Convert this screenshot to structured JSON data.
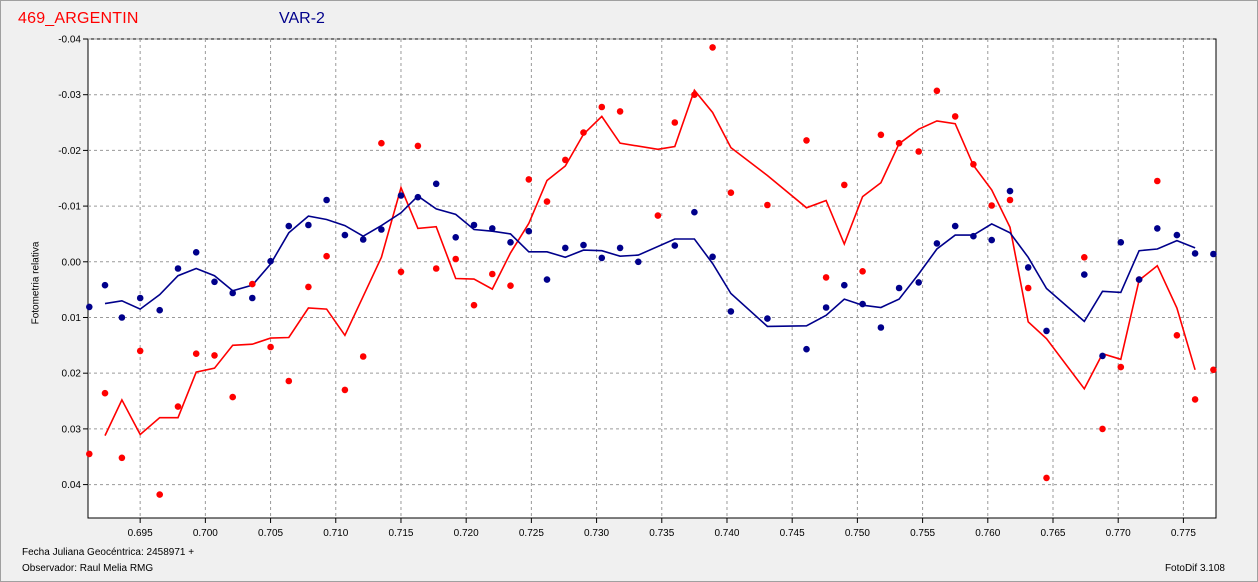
{
  "header": {
    "title_left": "469_ARGENTIN",
    "title_right": "VAR-2"
  },
  "footer": {
    "line1": "Fecha Juliana Geocéntrica: 2458971 +",
    "line2": "Observador: Raul Melia RMG",
    "version": "FotoDif 3.108"
  },
  "chart_data": {
    "type": "scatter",
    "ylabel": "Fotometria relativa",
    "xlabel": "Fecha Juliana Geocéntrica: 2458971 +",
    "xlim": [
      0.691,
      0.7775
    ],
    "ylim": [
      0.046,
      -0.04
    ],
    "y_inverted": true,
    "grid": true,
    "x_ticks": [
      "0.695",
      "0.700",
      "0.705",
      "0.710",
      "0.715",
      "0.720",
      "0.725",
      "0.730",
      "0.735",
      "0.740",
      "0.745",
      "0.750",
      "0.755",
      "0.760",
      "0.765",
      "0.770",
      "0.775"
    ],
    "y_ticks": [
      "-0.04",
      "-0.03",
      "-0.02",
      "-0.01",
      "0.00",
      "0.01",
      "0.02",
      "0.03",
      "0.04"
    ],
    "colors": {
      "red": "#ff0000",
      "blue": "#00008b"
    },
    "series": [
      {
        "color": "#ff0000",
        "points": [
          [
            0.6911,
            0.0345
          ],
          [
            0.6923,
            0.0236
          ],
          [
            0.6936,
            0.0352
          ],
          [
            0.695,
            0.016
          ],
          [
            0.6965,
            0.0418
          ],
          [
            0.6979,
            0.026
          ],
          [
            0.6993,
            0.0165
          ],
          [
            0.7007,
            0.0168
          ],
          [
            0.7021,
            0.0243
          ],
          [
            0.7036,
            0.004
          ],
          [
            0.705,
            0.0153
          ],
          [
            0.7064,
            0.0214
          ],
          [
            0.7079,
            0.0045
          ],
          [
            0.7093,
            -0.001
          ],
          [
            0.7107,
            0.023
          ],
          [
            0.7121,
            0.017
          ],
          [
            0.7135,
            -0.0213
          ],
          [
            0.715,
            0.0018
          ],
          [
            0.7163,
            -0.0208
          ],
          [
            0.7177,
            0.0012
          ],
          [
            0.7192,
            -0.0005
          ],
          [
            0.7206,
            0.0078
          ],
          [
            0.722,
            0.0022
          ],
          [
            0.7234,
            0.0043
          ],
          [
            0.7248,
            -0.0148
          ],
          [
            0.7262,
            -0.0108
          ],
          [
            0.7276,
            -0.0183
          ],
          [
            0.729,
            -0.0232
          ],
          [
            0.7304,
            -0.0278
          ],
          [
            0.7318,
            -0.027
          ],
          [
            0.7347,
            -0.0083
          ],
          [
            0.736,
            -0.025
          ],
          [
            0.7375,
            -0.03
          ],
          [
            0.7389,
            -0.0385
          ],
          [
            0.7403,
            -0.0124
          ],
          [
            0.7431,
            -0.0102
          ],
          [
            0.7461,
            -0.0218
          ],
          [
            0.7476,
            0.0028
          ],
          [
            0.749,
            -0.0138
          ],
          [
            0.7504,
            0.0017
          ],
          [
            0.7518,
            -0.0228
          ],
          [
            0.7532,
            -0.0213
          ],
          [
            0.7547,
            -0.0198
          ],
          [
            0.7561,
            -0.0307
          ],
          [
            0.7575,
            -0.0261
          ],
          [
            0.7589,
            -0.0175
          ],
          [
            0.7603,
            -0.0101
          ],
          [
            0.7617,
            -0.0111
          ],
          [
            0.7631,
            0.0047
          ],
          [
            0.7645,
            0.0388
          ],
          [
            0.7674,
            -0.0008
          ],
          [
            0.7688,
            0.03
          ],
          [
            0.7702,
            0.0189
          ],
          [
            0.7716,
            0.0032
          ],
          [
            0.773,
            -0.0145
          ],
          [
            0.7745,
            0.0132
          ],
          [
            0.7759,
            0.0247
          ],
          [
            0.7773,
            0.0194
          ]
        ]
      },
      {
        "color": "#00008b",
        "points": [
          [
            0.6911,
            0.0081
          ],
          [
            0.6923,
            0.0042
          ],
          [
            0.6936,
            0.01
          ],
          [
            0.695,
            0.0065
          ],
          [
            0.6965,
            0.0087
          ],
          [
            0.6979,
            0.0012
          ],
          [
            0.6993,
            -0.0017
          ],
          [
            0.7007,
            0.0036
          ],
          [
            0.7021,
            0.0056
          ],
          [
            0.7036,
            0.0065
          ],
          [
            0.705,
            -0.0001
          ],
          [
            0.7064,
            -0.0064
          ],
          [
            0.7079,
            -0.0066
          ],
          [
            0.7093,
            -0.0111
          ],
          [
            0.7107,
            -0.0048
          ],
          [
            0.7121,
            -0.004
          ],
          [
            0.7135,
            -0.0058
          ],
          [
            0.715,
            -0.0119
          ],
          [
            0.7163,
            -0.0116
          ],
          [
            0.7177,
            -0.014
          ],
          [
            0.7192,
            -0.0044
          ],
          [
            0.7206,
            -0.0066
          ],
          [
            0.722,
            -0.006
          ],
          [
            0.7234,
            -0.0035
          ],
          [
            0.7248,
            -0.0055
          ],
          [
            0.7262,
            0.0032
          ],
          [
            0.7276,
            -0.0025
          ],
          [
            0.729,
            -0.003
          ],
          [
            0.7304,
            -0.0007
          ],
          [
            0.7318,
            -0.0025
          ],
          [
            0.7332,
            0.0
          ],
          [
            0.736,
            -0.0029
          ],
          [
            0.7375,
            -0.0089
          ],
          [
            0.7389,
            -0.0009
          ],
          [
            0.7403,
            0.0089
          ],
          [
            0.7431,
            0.0102
          ],
          [
            0.7461,
            0.0157
          ],
          [
            0.7476,
            0.0082
          ],
          [
            0.749,
            0.0042
          ],
          [
            0.7504,
            0.0076
          ],
          [
            0.7518,
            0.0118
          ],
          [
            0.7532,
            0.0047
          ],
          [
            0.7547,
            0.0037
          ],
          [
            0.7561,
            -0.0033
          ],
          [
            0.7575,
            -0.0064
          ],
          [
            0.7589,
            -0.0046
          ],
          [
            0.7603,
            -0.0039
          ],
          [
            0.7617,
            -0.0127
          ],
          [
            0.7631,
            0.001
          ],
          [
            0.7645,
            0.0124
          ],
          [
            0.7674,
            0.0023
          ],
          [
            0.7688,
            0.0169
          ],
          [
            0.7702,
            -0.0035
          ],
          [
            0.7716,
            0.0032
          ],
          [
            0.773,
            -0.006
          ],
          [
            0.7745,
            -0.0048
          ],
          [
            0.7759,
            -0.0015
          ],
          [
            0.7773,
            -0.0014
          ]
        ]
      },
      {
        "color": "#ff0000",
        "line": [
          [
            0.6923,
            0.0312
          ],
          [
            0.6936,
            0.0248
          ],
          [
            0.695,
            0.031
          ],
          [
            0.6965,
            0.028
          ],
          [
            0.6979,
            0.028
          ],
          [
            0.6993,
            0.0198
          ],
          [
            0.7007,
            0.0191
          ],
          [
            0.7021,
            0.015
          ],
          [
            0.7036,
            0.0148
          ],
          [
            0.705,
            0.0137
          ],
          [
            0.7064,
            0.0136
          ],
          [
            0.7079,
            0.0083
          ],
          [
            0.7093,
            0.0085
          ],
          [
            0.7107,
            0.0132
          ],
          [
            0.7121,
            0.0062
          ],
          [
            0.7135,
            -0.0008
          ],
          [
            0.715,
            -0.0133
          ],
          [
            0.7163,
            -0.006
          ],
          [
            0.7177,
            -0.0063
          ],
          [
            0.7192,
            0.003
          ],
          [
            0.7206,
            0.0031
          ],
          [
            0.722,
            0.0049
          ],
          [
            0.7234,
            -0.0016
          ],
          [
            0.7248,
            -0.0069
          ],
          [
            0.7262,
            -0.0146
          ],
          [
            0.7276,
            -0.0172
          ],
          [
            0.729,
            -0.0229
          ],
          [
            0.7304,
            -0.0261
          ],
          [
            0.7318,
            -0.0213
          ],
          [
            0.7347,
            -0.0202
          ],
          [
            0.736,
            -0.0207
          ],
          [
            0.7375,
            -0.0308
          ],
          [
            0.7389,
            -0.0268
          ],
          [
            0.7403,
            -0.0205
          ],
          [
            0.7431,
            -0.0155
          ],
          [
            0.7461,
            -0.0097
          ],
          [
            0.7476,
            -0.011
          ],
          [
            0.749,
            -0.0032
          ],
          [
            0.7504,
            -0.0117
          ],
          [
            0.7518,
            -0.0142
          ],
          [
            0.7532,
            -0.0212
          ],
          [
            0.7547,
            -0.0238
          ],
          [
            0.7561,
            -0.0253
          ],
          [
            0.7575,
            -0.0248
          ],
          [
            0.7589,
            -0.0173
          ],
          [
            0.7603,
            -0.0129
          ],
          [
            0.7617,
            -0.0062
          ],
          [
            0.7631,
            0.0108
          ],
          [
            0.7645,
            0.0138
          ],
          [
            0.7674,
            0.0228
          ],
          [
            0.7688,
            0.0165
          ],
          [
            0.7702,
            0.0175
          ],
          [
            0.7716,
            0.0033
          ],
          [
            0.773,
            0.0007
          ],
          [
            0.7745,
            0.0083
          ],
          [
            0.7759,
            0.0194
          ]
        ]
      },
      {
        "color": "#00008b",
        "line": [
          [
            0.6923,
            0.0075
          ],
          [
            0.6936,
            0.007
          ],
          [
            0.695,
            0.0085
          ],
          [
            0.6965,
            0.0059
          ],
          [
            0.6979,
            0.0025
          ],
          [
            0.6993,
            0.0012
          ],
          [
            0.7007,
            0.0025
          ],
          [
            0.7021,
            0.0052
          ],
          [
            0.7036,
            0.0042
          ],
          [
            0.705,
            0.0004
          ],
          [
            0.7064,
            -0.0052
          ],
          [
            0.7079,
            -0.0082
          ],
          [
            0.7093,
            -0.0076
          ],
          [
            0.7107,
            -0.0065
          ],
          [
            0.7121,
            -0.0046
          ],
          [
            0.7135,
            -0.0065
          ],
          [
            0.715,
            -0.0088
          ],
          [
            0.7163,
            -0.0118
          ],
          [
            0.7177,
            -0.0095
          ],
          [
            0.7192,
            -0.0085
          ],
          [
            0.7206,
            -0.0058
          ],
          [
            0.722,
            -0.0055
          ],
          [
            0.7234,
            -0.005
          ],
          [
            0.7248,
            -0.0018
          ],
          [
            0.7262,
            -0.0018
          ],
          [
            0.7276,
            -0.0008
          ],
          [
            0.729,
            -0.0021
          ],
          [
            0.7304,
            -0.002
          ],
          [
            0.7318,
            -0.001
          ],
          [
            0.7332,
            -0.0012
          ],
          [
            0.736,
            -0.0041
          ],
          [
            0.7375,
            -0.0041
          ],
          [
            0.7389,
            0.0003
          ],
          [
            0.7403,
            0.0057
          ],
          [
            0.7431,
            0.0116
          ],
          [
            0.7461,
            0.0115
          ],
          [
            0.7476,
            0.0096
          ],
          [
            0.749,
            0.0067
          ],
          [
            0.7504,
            0.0078
          ],
          [
            0.7518,
            0.0082
          ],
          [
            0.7532,
            0.0067
          ],
          [
            0.7547,
            0.0022
          ],
          [
            0.7561,
            -0.0023
          ],
          [
            0.7575,
            -0.0048
          ],
          [
            0.7589,
            -0.0048
          ],
          [
            0.7603,
            -0.0068
          ],
          [
            0.7617,
            -0.0052
          ],
          [
            0.7631,
            -0.0008
          ],
          [
            0.7645,
            0.0048
          ],
          [
            0.7674,
            0.0107
          ],
          [
            0.7688,
            0.0053
          ],
          [
            0.7702,
            0.0055
          ],
          [
            0.7716,
            -0.002
          ],
          [
            0.773,
            -0.0023
          ],
          [
            0.7745,
            -0.0038
          ],
          [
            0.7759,
            -0.0025
          ]
        ]
      }
    ]
  }
}
